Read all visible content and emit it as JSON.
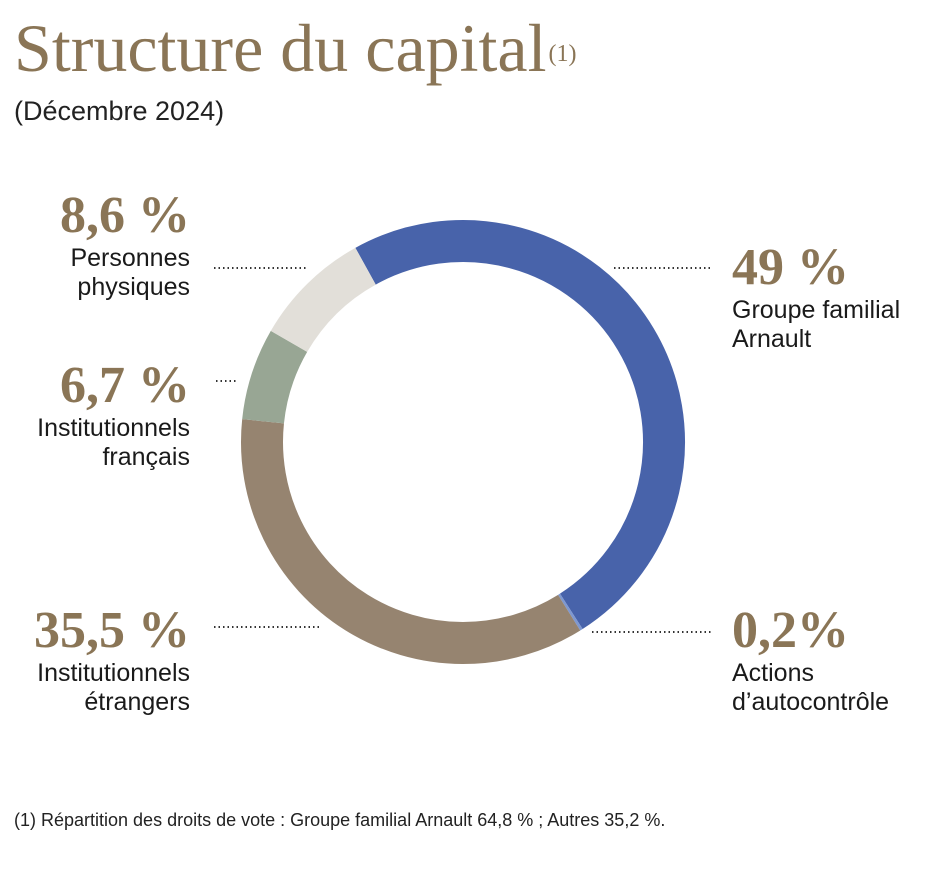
{
  "title": "Structure du capital",
  "title_note": "(1)",
  "subtitle": "(Décembre 2024)",
  "footnote": "(1) Répartition des droits de vote : Groupe familial Arnault 64,8 % ; Autres 35,2 %.",
  "chart_data": {
    "type": "pie",
    "variant": "donut",
    "title": "Structure du capital",
    "series": [
      {
        "name": "Groupe familial Arnault",
        "label": "Groupe familial\nArnault",
        "value": 49,
        "value_label": "49 %",
        "color": "#4863aa"
      },
      {
        "name": "Actions d’autocontrôle",
        "label": "Actions\nd’autocontrôle",
        "value": 0.2,
        "value_label": "0,2%",
        "color": "#7e98d0"
      },
      {
        "name": "Institutionnels étrangers",
        "label": "Institutionnels\nétrangers",
        "value": 35.5,
        "value_label": "35,5 %",
        "color": "#968470"
      },
      {
        "name": "Institutionnels français",
        "label": "Institutionnels\nfrançais",
        "value": 6.7,
        "value_label": "6,7 %",
        "color": "#98a694"
      },
      {
        "name": "Personnes physiques",
        "label": "Personnes\nphysiques",
        "value": 8.6,
        "value_label": "8,6 %",
        "color": "#e2dfd9"
      }
    ]
  }
}
